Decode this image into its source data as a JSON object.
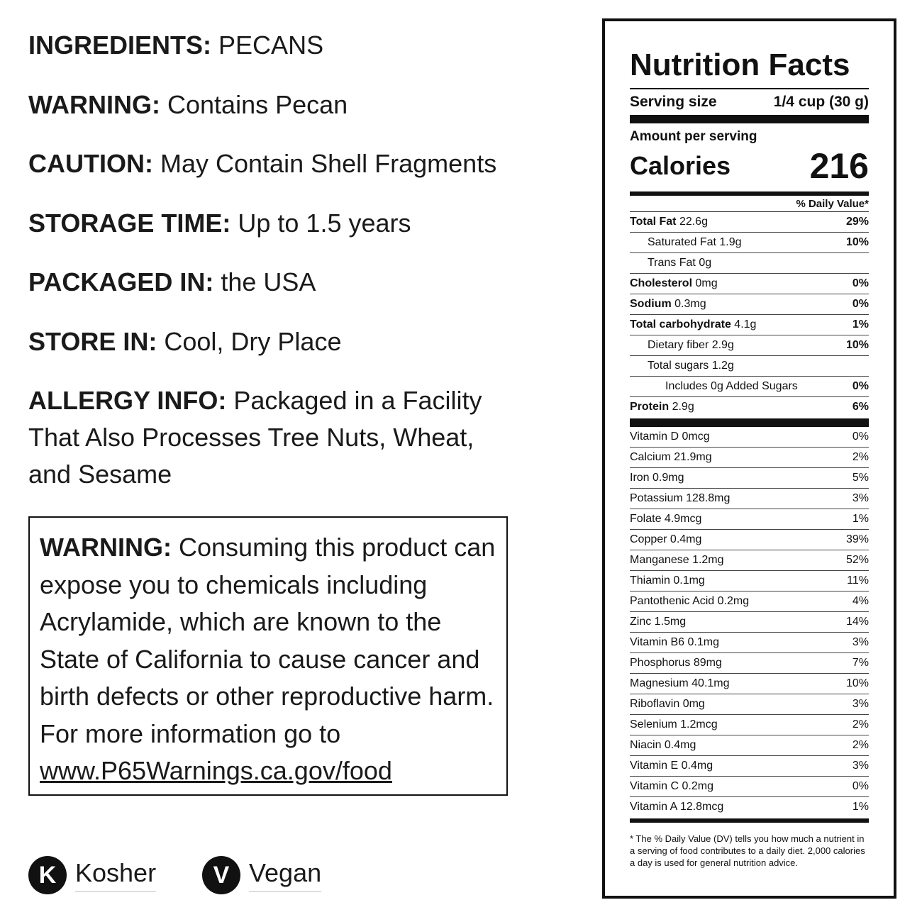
{
  "info": {
    "ingredients_label": "INGREDIENTS:",
    "ingredients_value": "PECANS",
    "warning_label": "WARNING:",
    "warning_value": "Contains Pecan",
    "caution_label": "CAUTION:",
    "caution_value": "May Contain Shell Fragments",
    "storage_label": "STORAGE TIME:",
    "storage_value": "Up to 1.5 years",
    "packaged_label": "PACKAGED IN:",
    "packaged_value": "the USA",
    "store_label": "STORE IN:",
    "store_value": "Cool, Dry Place",
    "allergy_label": "ALLERGY INFO:",
    "allergy_value": "Packaged in a Facility That Also Processes Tree Nuts, Wheat, and Sesame"
  },
  "prop65": {
    "label": "WARNING:",
    "text": "Consuming this product can expose you to chemicals including Acrylamide, which are known to the State of California to cause cancer and birth defects or other reproductive harm. For more information go to",
    "link": "www.P65Warnings.ca.gov/food"
  },
  "badges": [
    {
      "letter": "K",
      "label": "Kosher"
    },
    {
      "letter": "V",
      "label": "Vegan"
    }
  ],
  "nutrition": {
    "title": "Nutrition Facts",
    "serving_label": "Serving size",
    "serving_value": "1/4 cup (30 g)",
    "amount_label": "Amount per serving",
    "calories_label": "Calories",
    "calories_value": "216",
    "dv_header": "% Daily Value*",
    "rows": [
      {
        "name": "Total Fat",
        "amount": "22.6g",
        "pct": "29%"
      },
      {
        "name": "Saturated Fat 1.9g",
        "pct": "10%"
      },
      {
        "name": "Trans Fat 0g",
        "pct": ""
      },
      {
        "name": "Cholesterol",
        "amount": "0mg",
        "pct": "0%"
      },
      {
        "name": "Sodium",
        "amount": "0.3mg",
        "pct": "0%"
      },
      {
        "name": "Total carbohydrate",
        "amount": "4.1g",
        "pct": "1%"
      },
      {
        "name": "Dietary fiber 2.9g",
        "pct": "10%"
      },
      {
        "name": "Total sugars 1.2g",
        "pct": ""
      },
      {
        "name": "Includes 0g Added Sugars",
        "pct": "0%"
      },
      {
        "name": "Protein",
        "amount": "2.9g",
        "pct": "6%"
      }
    ],
    "vitamins": [
      {
        "name": "Vitamin D 0mcg",
        "pct": "0%"
      },
      {
        "name": "Calcium 21.9mg",
        "pct": "2%"
      },
      {
        "name": "Iron 0.9mg",
        "pct": "5%"
      },
      {
        "name": "Potassium 128.8mg",
        "pct": "3%"
      },
      {
        "name": "Folate 4.9mcg",
        "pct": "1%"
      },
      {
        "name": "Copper 0.4mg",
        "pct": "39%"
      },
      {
        "name": "Manganese 1.2mg",
        "pct": "52%"
      },
      {
        "name": "Thiamin 0.1mg",
        "pct": "11%"
      },
      {
        "name": "Pantothenic Acid 0.2mg",
        "pct": "4%"
      },
      {
        "name": "Zinc 1.5mg",
        "pct": "14%"
      },
      {
        "name": "Vitamin B6 0.1mg",
        "pct": "3%"
      },
      {
        "name": "Phosphorus 89mg",
        "pct": "7%"
      },
      {
        "name": "Magnesium 40.1mg",
        "pct": "10%"
      },
      {
        "name": "Riboflavin 0mg",
        "pct": "3%"
      },
      {
        "name": "Selenium 1.2mcg",
        "pct": "2%"
      },
      {
        "name": "Niacin 0.4mg",
        "pct": "2%"
      },
      {
        "name": "Vitamin E 0.4mg",
        "pct": "3%"
      },
      {
        "name": "Vitamin C 0.2mg",
        "pct": "0%"
      },
      {
        "name": "Vitamin A 12.8mcg",
        "pct": "1%"
      }
    ],
    "footnote": "* The % Daily Value (DV) tells you how much a nutrient in a serving of food contributes to a daily diet. 2,000 calories a day is used for general nutrition advice."
  }
}
